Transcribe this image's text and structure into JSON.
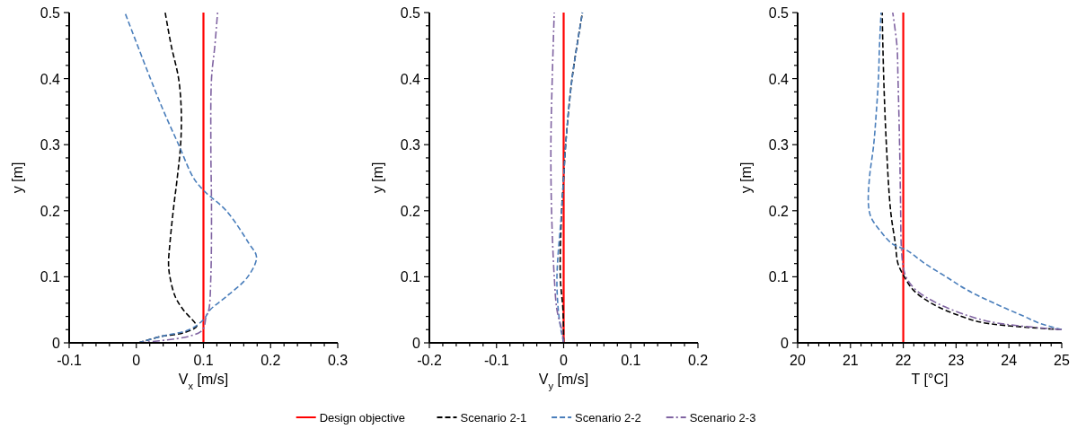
{
  "chart_data": [
    {
      "type": "line",
      "xlabel": "V$_{x}$ [m/s]",
      "ylabel": "y [m]",
      "xlim": [
        -0.1,
        0.3
      ],
      "ylim": [
        0,
        0.5
      ],
      "xticks": [
        -0.1,
        {
          "value": -0.08,
          "label": null
        },
        {
          "value": -0.06,
          "label": null
        },
        {
          "value": -0.04,
          "label": null
        },
        {
          "value": -0.02,
          "label": null
        },
        0,
        {
          "value": 0.02,
          "label": null
        },
        {
          "value": 0.04,
          "label": null
        },
        {
          "value": 0.06,
          "label": null
        },
        {
          "value": 0.08,
          "label": null
        },
        0.1,
        {
          "value": 0.12,
          "label": null
        },
        {
          "value": 0.14,
          "label": null
        },
        {
          "value": 0.16,
          "label": null
        },
        {
          "value": 0.18,
          "label": null
        },
        0.2,
        {
          "value": 0.22,
          "label": null
        },
        {
          "value": 0.24,
          "label": null
        },
        {
          "value": 0.26,
          "label": null
        },
        {
          "value": 0.28,
          "label": null
        },
        0.3
      ],
      "yticks": [
        0,
        {
          "value": 0.02,
          "label": null
        },
        {
          "value": 0.04,
          "label": null
        },
        {
          "value": 0.06,
          "label": null
        },
        {
          "value": 0.08,
          "label": null
        },
        0.1,
        {
          "value": 0.12,
          "label": null
        },
        {
          "value": 0.14,
          "label": null
        },
        {
          "value": 0.16,
          "label": null
        },
        {
          "value": 0.18,
          "label": null
        },
        0.2,
        {
          "value": 0.22,
          "label": null
        },
        {
          "value": 0.24,
          "label": null
        },
        {
          "value": 0.26,
          "label": null
        },
        {
          "value": 0.28,
          "label": null
        },
        0.3,
        {
          "value": 0.32,
          "label": null
        },
        {
          "value": 0.34,
          "label": null
        },
        {
          "value": 0.36,
          "label": null
        },
        {
          "value": 0.38,
          "label": null
        },
        0.4,
        {
          "value": 0.42,
          "label": null
        },
        {
          "value": 0.44,
          "label": null
        },
        {
          "value": 0.46,
          "label": null
        },
        {
          "value": 0.48,
          "label": null
        },
        0.5
      ],
      "series": [
        {
          "color": "#ff0000",
          "line_style": "solid",
          "x": [
            0.1,
            0.1
          ],
          "values": [
            0,
            0.5
          ]
        },
        {
          "color": "#000000",
          "line_style": "dashed",
          "x": [
            0.003,
            0.038,
            0.07,
            0.09,
            0.0875,
            0.07,
            0.058,
            0.05,
            0.048,
            0.05,
            0.055,
            0.061,
            0.066,
            0.067,
            0.063,
            0.052,
            0.043
          ],
          "values": [
            0,
            0.01,
            0.015,
            0.025,
            0.03,
            0.05,
            0.07,
            0.1,
            0.12,
            0.15,
            0.2,
            0.25,
            0.3,
            0.35,
            0.4,
            0.45,
            0.5
          ]
        },
        {
          "color": "#4a7ebb",
          "line_style": "dashed",
          "x": [
            0.003,
            0.038,
            0.079,
            0.1,
            0.11,
            0.134,
            0.166,
            0.179,
            0.168,
            0.134,
            0.101,
            0.085,
            0.063,
            0.041,
            0.021,
            -0.017
          ],
          "values": [
            0,
            0.01,
            0.02,
            0.035,
            0.05,
            0.07,
            0.1,
            0.13,
            0.15,
            0.2,
            0.23,
            0.25,
            0.3,
            0.35,
            0.4,
            0.5
          ]
        },
        {
          "color": "#8064a2",
          "line_style": "dashdot",
          "x": [
            0.003,
            0.079,
            0.099,
            0.104,
            0.108,
            0.111,
            0.112,
            0.111,
            0.112,
            0.117,
            0.121
          ],
          "values": [
            0,
            0.01,
            0.02,
            0.04,
            0.05,
            0.1,
            0.2,
            0.3,
            0.4,
            0.45,
            0.5
          ]
        }
      ]
    },
    {
      "type": "line",
      "xlabel": "V$_{y}$ [m/s]",
      "ylabel": "y [m]",
      "xlim": [
        -0.2,
        0.2
      ],
      "ylim": [
        0,
        0.5
      ],
      "legend": "bottom",
      "xticks": [
        -0.2,
        {
          "value": -0.18,
          "label": null
        },
        {
          "value": -0.16,
          "label": null
        },
        {
          "value": -0.14,
          "label": null
        },
        {
          "value": -0.12,
          "label": null
        },
        -0.1,
        {
          "value": -0.08,
          "label": null
        },
        {
          "value": -0.06,
          "label": null
        },
        {
          "value": -0.04,
          "label": null
        },
        {
          "value": -0.02,
          "label": null
        },
        0,
        {
          "value": 0.02,
          "label": null
        },
        {
          "value": 0.04,
          "label": null
        },
        {
          "value": 0.06,
          "label": null
        },
        {
          "value": 0.08,
          "label": null
        },
        0.1,
        {
          "value": 0.12,
          "label": null
        },
        {
          "value": 0.14,
          "label": null
        },
        {
          "value": 0.16,
          "label": null
        },
        {
          "value": 0.18,
          "label": null
        },
        0.2
      ],
      "yticks": [
        0,
        {
          "value": 0.02,
          "label": null
        },
        {
          "value": 0.04,
          "label": null
        },
        {
          "value": 0.06,
          "label": null
        },
        {
          "value": 0.08,
          "label": null
        },
        0.1,
        {
          "value": 0.12,
          "label": null
        },
        {
          "value": 0.14,
          "label": null
        },
        {
          "value": 0.16,
          "label": null
        },
        {
          "value": 0.18,
          "label": null
        },
        0.2,
        {
          "value": 0.22,
          "label": null
        },
        {
          "value": 0.24,
          "label": null
        },
        {
          "value": 0.26,
          "label": null
        },
        {
          "value": 0.28,
          "label": null
        },
        0.3,
        {
          "value": 0.32,
          "label": null
        },
        {
          "value": 0.34,
          "label": null
        },
        {
          "value": 0.36,
          "label": null
        },
        {
          "value": 0.38,
          "label": null
        },
        0.4,
        {
          "value": 0.42,
          "label": null
        },
        {
          "value": 0.44,
          "label": null
        },
        {
          "value": 0.46,
          "label": null
        },
        {
          "value": 0.48,
          "label": null
        },
        0.5
      ],
      "series": [
        {
          "name": "Design objective",
          "color": "#ff0000",
          "line_style": "solid",
          "x": [
            0,
            0
          ],
          "values": [
            0,
            0.5
          ]
        },
        {
          "name": "Scenario 2-1",
          "color": "#000000",
          "line_style": "dashed",
          "x": [
            0,
            -0.001,
            -0.005,
            -0.003,
            0,
            0.003,
            0.0125,
            0.028
          ],
          "values": [
            0,
            0.05,
            0.1,
            0.2,
            0.25,
            0.3,
            0.4,
            0.5
          ]
        },
        {
          "name": "Scenario 2-2",
          "color": "#4a7ebb",
          "line_style": "dashed",
          "x": [
            0,
            -0.004,
            -0.008,
            -0.01,
            -0.003,
            0,
            0.003,
            0.0125,
            0.028
          ],
          "values": [
            0,
            0.02,
            0.05,
            0.1,
            0.2,
            0.25,
            0.3,
            0.4,
            0.5
          ]
        },
        {
          "name": "Scenario 2-3",
          "color": "#8064a2",
          "line_style": "dashdot",
          "x": [
            0,
            -0.003,
            -0.01,
            -0.014,
            -0.018,
            -0.019,
            -0.017,
            -0.014
          ],
          "values": [
            0,
            0.02,
            0.05,
            0.1,
            0.2,
            0.3,
            0.4,
            0.5
          ]
        }
      ]
    },
    {
      "type": "line",
      "xlabel": "T [°C]",
      "ylabel": "y [m]",
      "xlim": [
        20,
        25
      ],
      "ylim": [
        0,
        0.5
      ],
      "xticks": [
        20,
        {
          "value": 20.2,
          "label": null
        },
        {
          "value": 20.4,
          "label": null
        },
        {
          "value": 20.6,
          "label": null
        },
        {
          "value": 20.8,
          "label": null
        },
        21,
        {
          "value": 21.2,
          "label": null
        },
        {
          "value": 21.4,
          "label": null
        },
        {
          "value": 21.6,
          "label": null
        },
        {
          "value": 21.8,
          "label": null
        },
        22,
        {
          "value": 22.2,
          "label": null
        },
        {
          "value": 22.4,
          "label": null
        },
        {
          "value": 22.6,
          "label": null
        },
        {
          "value": 22.8,
          "label": null
        },
        23,
        {
          "value": 23.2,
          "label": null
        },
        {
          "value": 23.4,
          "label": null
        },
        {
          "value": 23.6,
          "label": null
        },
        {
          "value": 23.8,
          "label": null
        },
        24,
        {
          "value": 24.2,
          "label": null
        },
        {
          "value": 24.4,
          "label": null
        },
        {
          "value": 24.6,
          "label": null
        },
        {
          "value": 24.8,
          "label": null
        },
        25
      ],
      "yticks": [
        0,
        {
          "value": 0.02,
          "label": null
        },
        {
          "value": 0.04,
          "label": null
        },
        {
          "value": 0.06,
          "label": null
        },
        {
          "value": 0.08,
          "label": null
        },
        0.1,
        {
          "value": 0.12,
          "label": null
        },
        {
          "value": 0.14,
          "label": null
        },
        {
          "value": 0.16,
          "label": null
        },
        {
          "value": 0.18,
          "label": null
        },
        0.2,
        {
          "value": 0.22,
          "label": null
        },
        {
          "value": 0.24,
          "label": null
        },
        {
          "value": 0.26,
          "label": null
        },
        {
          "value": 0.28,
          "label": null
        },
        0.3,
        {
          "value": 0.32,
          "label": null
        },
        {
          "value": 0.34,
          "label": null
        },
        {
          "value": 0.36,
          "label": null
        },
        {
          "value": 0.38,
          "label": null
        },
        0.4,
        {
          "value": 0.42,
          "label": null
        },
        {
          "value": 0.44,
          "label": null
        },
        {
          "value": 0.46,
          "label": null
        },
        {
          "value": 0.48,
          "label": null
        },
        0.5
      ],
      "series": [
        {
          "color": "#ff0000",
          "line_style": "solid",
          "x": [
            22,
            22
          ],
          "values": [
            0,
            0.5
          ]
        },
        {
          "color": "#000000",
          "line_style": "dashed",
          "x": [
            25,
            23.55,
            23.1,
            22.53,
            22.19,
            22.02,
            21.9,
            21.85,
            21.76,
            21.68,
            21.63,
            21.6
          ],
          "values": [
            0.02,
            0.03,
            0.04,
            0.06,
            0.08,
            0.1,
            0.12,
            0.15,
            0.2,
            0.3,
            0.4,
            0.5
          ]
        },
        {
          "color": "#4a7ebb",
          "line_style": "dashed",
          "x": [
            25,
            24.57,
            24.29,
            23.72,
            23.21,
            22.81,
            22.41,
            22.07,
            21.79,
            21.56,
            21.39,
            21.34,
            21.36,
            21.44,
            21.49,
            21.53,
            21.55,
            21.58
          ],
          "values": [
            0.02,
            0.03,
            0.04,
            0.06,
            0.08,
            0.1,
            0.12,
            0.14,
            0.15,
            0.17,
            0.19,
            0.21,
            0.25,
            0.3,
            0.35,
            0.4,
            0.45,
            0.5
          ]
        },
        {
          "color": "#8064a2",
          "line_style": "dashdot",
          "x": [
            25,
            23.78,
            23.27,
            22.64,
            22.24,
            22.05,
            21.99,
            21.96,
            21.95,
            21.93,
            21.9,
            21.88,
            21.8
          ],
          "values": [
            0.02,
            0.03,
            0.04,
            0.06,
            0.08,
            0.1,
            0.12,
            0.15,
            0.2,
            0.3,
            0.4,
            0.45,
            0.5
          ]
        }
      ]
    }
  ]
}
